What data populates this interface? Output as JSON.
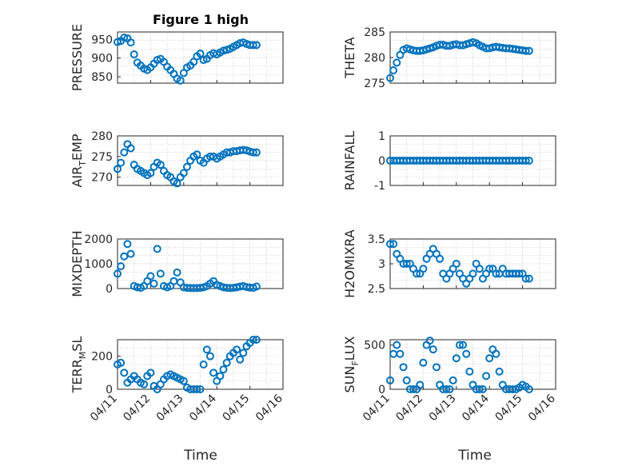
{
  "figure": {
    "title": "Figure 1 high",
    "xlabel": "Time",
    "x_ticks": [
      "04/11",
      "04/12",
      "04/13",
      "04/14",
      "04/15",
      "04/16"
    ],
    "marker_color": "#0072BD"
  },
  "chart_data": [
    {
      "type": "scatter",
      "name": "pressure",
      "title": "Figure 1 high",
      "ylabel": "PRESSURE",
      "ylabel_sub": "",
      "ylabel_suffix": "",
      "ylim": [
        833,
        970
      ],
      "yticks": [
        850,
        900,
        950
      ],
      "xlim": [
        0,
        5
      ],
      "x_tick_labels": [
        "",
        "",
        "",
        "",
        "",
        ""
      ],
      "series": [
        {
          "name": "PRESSURE",
          "x": [
            0,
            0.1,
            0.2,
            0.3,
            0.4,
            0.5,
            0.6,
            0.7,
            0.8,
            0.9,
            1,
            1.1,
            1.2,
            1.3,
            1.4,
            1.5,
            1.6,
            1.7,
            1.8,
            1.9,
            2,
            2.1,
            2.2,
            2.3,
            2.4,
            2.5,
            2.6,
            2.7,
            2.8,
            2.9,
            3,
            3.1,
            3.2,
            3.3,
            3.4,
            3.5,
            3.6,
            3.7,
            3.8,
            3.9,
            4,
            4.1,
            4.2
          ],
          "y": [
            943,
            946,
            955,
            953,
            942,
            910,
            888,
            880,
            872,
            868,
            875,
            885,
            895,
            898,
            890,
            877,
            868,
            858,
            845,
            840,
            860,
            875,
            880,
            890,
            905,
            912,
            895,
            898,
            908,
            913,
            910,
            915,
            920,
            922,
            925,
            930,
            935,
            940,
            942,
            938,
            935,
            935,
            935
          ]
        }
      ]
    },
    {
      "type": "scatter",
      "name": "theta",
      "title": "",
      "ylabel": "THETA",
      "ylabel_sub": "",
      "ylabel_suffix": "",
      "ylim": [
        275,
        285
      ],
      "yticks": [
        275,
        280,
        285
      ],
      "xlim": [
        0,
        5
      ],
      "x_tick_labels": [
        "",
        "",
        "",
        "",
        "",
        ""
      ],
      "series": [
        {
          "name": "THETA",
          "x": [
            0,
            0.1,
            0.2,
            0.3,
            0.4,
            0.5,
            0.6,
            0.7,
            0.8,
            0.9,
            1,
            1.1,
            1.2,
            1.3,
            1.4,
            1.5,
            1.6,
            1.7,
            1.8,
            1.9,
            2,
            2.1,
            2.2,
            2.3,
            2.4,
            2.5,
            2.6,
            2.7,
            2.8,
            2.9,
            3,
            3.1,
            3.2,
            3.3,
            3.4,
            3.5,
            3.6,
            3.7,
            3.8,
            3.9,
            4,
            4.1,
            4.2
          ],
          "y": [
            276,
            277.5,
            279,
            280.5,
            281.5,
            281.8,
            281.6,
            281.4,
            281.3,
            281.3,
            281.4,
            281.6,
            281.8,
            282,
            282.3,
            282.5,
            282.5,
            282.3,
            282.3,
            282.5,
            282.6,
            282.4,
            282.4,
            282.6,
            282.8,
            283,
            282.8,
            282.4,
            282.1,
            281.8,
            281.8,
            282,
            282.1,
            282,
            281.9,
            281.8,
            281.8,
            281.7,
            281.6,
            281.5,
            281.4,
            281.3,
            281.3
          ]
        }
      ]
    },
    {
      "type": "scatter",
      "name": "air_temp",
      "title": "",
      "ylabel": "AIR",
      "ylabel_sub": "T",
      "ylabel_suffix": "EMP",
      "ylim": [
        268,
        280
      ],
      "yticks": [
        270,
        275,
        280
      ],
      "xlim": [
        0,
        5
      ],
      "x_tick_labels": [
        "",
        "",
        "",
        "",
        "",
        ""
      ],
      "series": [
        {
          "name": "AIR_TEMP",
          "x": [
            0,
            0.1,
            0.2,
            0.3,
            0.4,
            0.5,
            0.6,
            0.7,
            0.8,
            0.9,
            1,
            1.1,
            1.2,
            1.3,
            1.4,
            1.5,
            1.6,
            1.7,
            1.8,
            1.9,
            2,
            2.1,
            2.2,
            2.3,
            2.4,
            2.5,
            2.6,
            2.7,
            2.8,
            2.9,
            3,
            3.1,
            3.2,
            3.3,
            3.4,
            3.5,
            3.6,
            3.7,
            3.8,
            3.9,
            4,
            4.1,
            4.2
          ],
          "y": [
            272,
            273.5,
            276,
            278,
            277,
            273,
            272,
            271.5,
            271,
            270.5,
            271,
            272.5,
            273.5,
            273,
            271.5,
            270.5,
            270,
            269,
            268.5,
            270,
            271,
            272.5,
            274,
            275,
            275.5,
            274,
            273.5,
            274.5,
            275,
            275,
            274.5,
            275,
            275.5,
            276,
            276,
            276.3,
            276.3,
            276.5,
            276.6,
            276.5,
            276.2,
            276,
            276
          ]
        }
      ]
    },
    {
      "type": "scatter",
      "name": "rainfall",
      "title": "",
      "ylabel": "RAINFALL",
      "ylabel_sub": "",
      "ylabel_suffix": "",
      "ylim": [
        -1,
        1
      ],
      "yticks": [
        -1,
        0,
        1
      ],
      "xlim": [
        0,
        5
      ],
      "x_tick_labels": [
        "",
        "",
        "",
        "",
        "",
        ""
      ],
      "series": [
        {
          "name": "RAINFALL",
          "x": [
            0,
            0.1,
            0.2,
            0.3,
            0.4,
            0.5,
            0.6,
            0.7,
            0.8,
            0.9,
            1,
            1.1,
            1.2,
            1.3,
            1.4,
            1.5,
            1.6,
            1.7,
            1.8,
            1.9,
            2,
            2.1,
            2.2,
            2.3,
            2.4,
            2.5,
            2.6,
            2.7,
            2.8,
            2.9,
            3,
            3.1,
            3.2,
            3.3,
            3.4,
            3.5,
            3.6,
            3.7,
            3.8,
            3.9,
            4,
            4.1,
            4.2
          ],
          "y": [
            0,
            0,
            0,
            0,
            0,
            0,
            0,
            0,
            0,
            0,
            0,
            0,
            0,
            0,
            0,
            0,
            0,
            0,
            0,
            0,
            0,
            0,
            0,
            0,
            0,
            0,
            0,
            0,
            0,
            0,
            0,
            0,
            0,
            0,
            0,
            0,
            0,
            0,
            0,
            0,
            0,
            0,
            0
          ]
        }
      ]
    },
    {
      "type": "scatter",
      "name": "mixdepth",
      "title": "",
      "ylabel": "MIXDEPTH",
      "ylabel_sub": "",
      "ylabel_suffix": "",
      "ylim": [
        0,
        2000
      ],
      "yticks": [
        0,
        1000,
        2000
      ],
      "xlim": [
        0,
        5
      ],
      "x_tick_labels": [
        "",
        "",
        "",
        "",
        "",
        ""
      ],
      "series": [
        {
          "name": "MIXDEPTH",
          "x": [
            0,
            0.1,
            0.2,
            0.3,
            0.4,
            0.5,
            0.6,
            0.7,
            0.8,
            0.9,
            1,
            1.1,
            1.2,
            1.3,
            1.4,
            1.5,
            1.6,
            1.7,
            1.8,
            1.9,
            2,
            2.1,
            2.2,
            2.3,
            2.4,
            2.5,
            2.6,
            2.7,
            2.8,
            2.9,
            3,
            3.1,
            3.2,
            3.3,
            3.4,
            3.5,
            3.6,
            3.7,
            3.8,
            3.9,
            4,
            4.1,
            4.2
          ],
          "y": [
            600,
            900,
            1300,
            1800,
            1400,
            100,
            50,
            30,
            100,
            300,
            500,
            200,
            1600,
            600,
            100,
            50,
            100,
            300,
            650,
            250,
            50,
            30,
            20,
            20,
            20,
            30,
            50,
            100,
            200,
            300,
            150,
            100,
            50,
            30,
            20,
            30,
            50,
            80,
            100,
            60,
            40,
            30,
            80
          ]
        }
      ]
    },
    {
      "type": "scatter",
      "name": "h2omixra",
      "title": "",
      "ylabel": "H2OMIXRA",
      "ylabel_sub": "",
      "ylabel_suffix": "",
      "ylim": [
        2.5,
        3.5
      ],
      "yticks": [
        2.5,
        3,
        3.5
      ],
      "xlim": [
        0,
        5
      ],
      "x_tick_labels": [
        "",
        "",
        "",
        "",
        "",
        ""
      ],
      "series": [
        {
          "name": "H2OMIXRA",
          "x": [
            0,
            0.1,
            0.2,
            0.3,
            0.4,
            0.5,
            0.6,
            0.7,
            0.8,
            0.9,
            1,
            1.1,
            1.2,
            1.3,
            1.4,
            1.5,
            1.6,
            1.7,
            1.8,
            1.9,
            2,
            2.1,
            2.2,
            2.3,
            2.4,
            2.5,
            2.6,
            2.7,
            2.8,
            2.9,
            3,
            3.1,
            3.2,
            3.3,
            3.4,
            3.5,
            3.6,
            3.7,
            3.8,
            3.9,
            4,
            4.1,
            4.2
          ],
          "y": [
            3.4,
            3.4,
            3.2,
            3.1,
            3,
            3,
            3,
            2.9,
            2.8,
            2.8,
            2.9,
            3.1,
            3.2,
            3.3,
            3.2,
            3.1,
            2.8,
            2.7,
            2.8,
            2.9,
            3,
            2.8,
            2.7,
            2.6,
            2.7,
            2.8,
            3,
            2.9,
            2.7,
            2.8,
            2.9,
            2.9,
            2.8,
            2.8,
            2.9,
            2.8,
            2.8,
            2.8,
            2.8,
            2.8,
            2.8,
            2.7,
            2.7
          ]
        }
      ]
    },
    {
      "type": "scatter",
      "name": "terr_msl",
      "title": "",
      "ylabel": "TERR",
      "ylabel_sub": "M",
      "ylabel_suffix": "SL",
      "ylim": [
        0,
        300
      ],
      "yticks": [
        0,
        200
      ],
      "xlim": [
        0,
        5
      ],
      "x_tick_labels": [
        "04/11",
        "04/12",
        "04/13",
        "04/14",
        "04/15",
        "04/16"
      ],
      "series": [
        {
          "name": "TERR_MSL",
          "x": [
            0,
            0.1,
            0.2,
            0.3,
            0.4,
            0.5,
            0.6,
            0.7,
            0.8,
            0.9,
            1,
            1.1,
            1.2,
            1.3,
            1.4,
            1.5,
            1.6,
            1.7,
            1.8,
            1.9,
            2,
            2.1,
            2.2,
            2.3,
            2.4,
            2.5,
            2.6,
            2.7,
            2.8,
            2.9,
            3,
            3.1,
            3.2,
            3.3,
            3.4,
            3.5,
            3.6,
            3.7,
            3.8,
            3.9,
            4,
            4.1,
            4.2
          ],
          "y": [
            150,
            160,
            100,
            40,
            60,
            80,
            60,
            40,
            30,
            80,
            100,
            20,
            0,
            30,
            60,
            80,
            90,
            80,
            70,
            60,
            50,
            10,
            0,
            0,
            0,
            0,
            150,
            240,
            200,
            100,
            50,
            80,
            120,
            160,
            200,
            220,
            240,
            180,
            220,
            260,
            280,
            300,
            300
          ]
        }
      ]
    },
    {
      "type": "scatter",
      "name": "sun_flux",
      "title": "",
      "ylabel": "SUN",
      "ylabel_sub": "F",
      "ylabel_suffix": "LUX",
      "ylim": [
        0,
        560
      ],
      "yticks": [
        0,
        500
      ],
      "xlim": [
        0,
        5
      ],
      "x_tick_labels": [
        "04/11",
        "04/12",
        "04/13",
        "04/14",
        "04/15",
        "04/16"
      ],
      "series": [
        {
          "name": "SUN_FLUX",
          "x": [
            0,
            0.1,
            0.2,
            0.3,
            0.4,
            0.5,
            0.6,
            0.7,
            0.8,
            0.9,
            1,
            1.1,
            1.2,
            1.3,
            1.4,
            1.5,
            1.6,
            1.7,
            1.8,
            1.9,
            2,
            2.1,
            2.2,
            2.3,
            2.4,
            2.5,
            2.6,
            2.7,
            2.8,
            2.9,
            3,
            3.1,
            3.2,
            3.3,
            3.4,
            3.5,
            3.6,
            3.7,
            3.8,
            3.9,
            4,
            4.1,
            4.2
          ],
          "y": [
            100,
            400,
            500,
            400,
            250,
            100,
            0,
            0,
            0,
            50,
            300,
            500,
            550,
            450,
            250,
            50,
            0,
            0,
            0,
            100,
            350,
            500,
            500,
            400,
            200,
            50,
            0,
            0,
            0,
            150,
            350,
            450,
            400,
            200,
            50,
            0,
            0,
            0,
            0,
            20,
            50,
            30,
            0
          ]
        }
      ]
    }
  ]
}
